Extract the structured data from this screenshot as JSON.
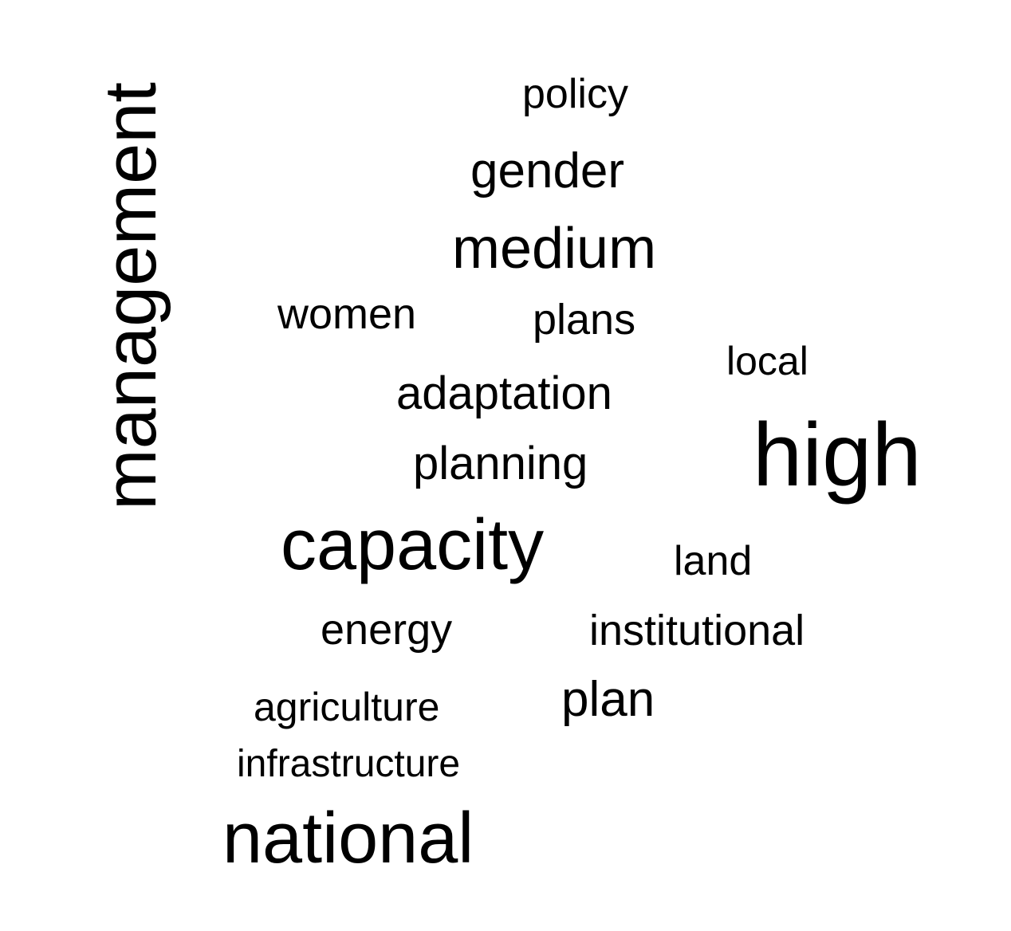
{
  "word_cloud": {
    "words": {
      "management": "management",
      "policy": "policy",
      "gender": "gender",
      "medium": "medium",
      "women": "women",
      "plans": "plans",
      "local": "local",
      "adaptation": "adaptation",
      "high": "high",
      "planning": "planning",
      "capacity": "capacity",
      "land": "land",
      "energy": "energy",
      "institutional": "institutional",
      "plan": "plan",
      "agriculture": "agriculture",
      "infrastructure": "infrastructure",
      "national": "national"
    },
    "text_color": "#000000",
    "background_color": "#ffffff"
  }
}
